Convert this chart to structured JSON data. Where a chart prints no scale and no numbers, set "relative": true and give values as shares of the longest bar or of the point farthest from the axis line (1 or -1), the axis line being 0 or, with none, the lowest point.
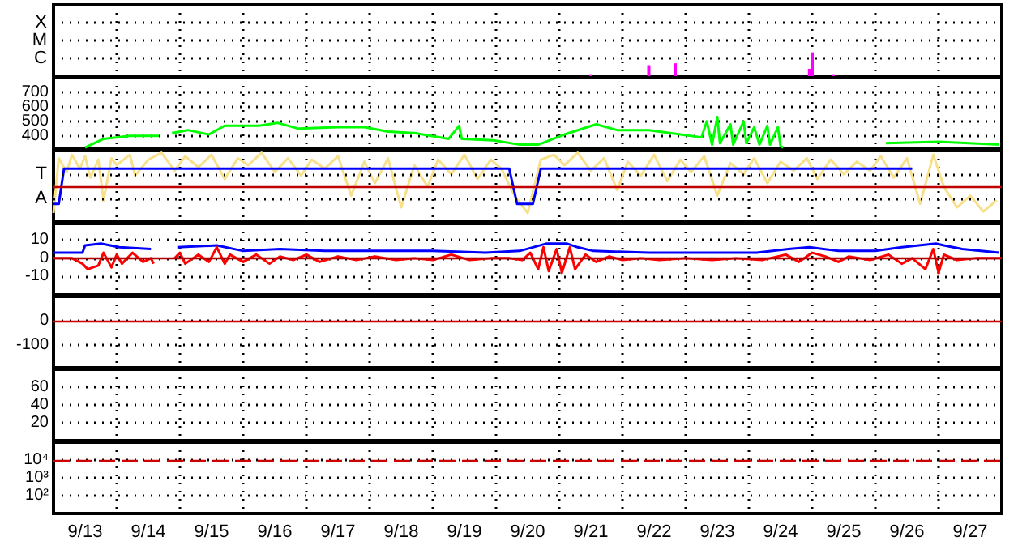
{
  "chart_data": [
    {
      "type": "bar",
      "relative": true,
      "tick_labels": false,
      "grid": true,
      "xlim": [
        "--09-13T00:00",
        "--09-28T00:00"
      ],
      "xticks": [
        {
          "value": "--09-13T12:00",
          "label": "9/13"
        },
        {
          "value": "--09-14T12:00",
          "label": "9/14"
        },
        {
          "value": "--09-15T12:00",
          "label": "9/15"
        },
        {
          "value": "--09-16T12:00",
          "label": "9/16"
        },
        {
          "value": "--09-17T12:00",
          "label": "9/17"
        },
        {
          "value": "--09-18T12:00",
          "label": "9/18"
        },
        {
          "value": "--09-19T12:00",
          "label": "9/19"
        },
        {
          "value": "--09-20T12:00",
          "label": "9/20"
        },
        {
          "value": "--09-21T12:00",
          "label": "9/21"
        },
        {
          "value": "--09-22T12:00",
          "label": "9/22"
        },
        {
          "value": "--09-23T12:00",
          "label": "9/23"
        },
        {
          "value": "--09-24T12:00",
          "label": "9/24"
        },
        {
          "value": "--09-25T12:00",
          "label": "9/25"
        },
        {
          "value": "--09-26T12:00",
          "label": "9/26"
        },
        {
          "value": "--09-27T12:00",
          "label": "9/27"
        },
        {
          "value": "--09-14T00:00",
          "label": null
        },
        {
          "value": "--09-15T00:00",
          "label": null
        },
        {
          "value": "--09-16T00:00",
          "label": null
        },
        {
          "value": "--09-17T00:00",
          "label": null
        },
        {
          "value": "--09-18T00:00",
          "label": null
        },
        {
          "value": "--09-19T00:00",
          "label": null
        },
        {
          "value": "--09-20T00:00",
          "label": null
        },
        {
          "value": "--09-21T00:00",
          "label": null
        },
        {
          "value": "--09-22T00:00",
          "label": null
        },
        {
          "value": "--09-23T00:00",
          "label": null
        },
        {
          "value": "--09-24T00:00",
          "label": null
        },
        {
          "value": "--09-25T00:00",
          "label": null
        },
        {
          "value": "--09-26T00:00",
          "label": null
        },
        {
          "value": "--09-27T00:00",
          "label": null
        }
      ],
      "annotations": [
        "C",
        "M",
        "X"
      ],
      "series": [
        {
          "color": "#ff00ff",
          "x": [
            "--09-21T12:00",
            "--09-22T10:00",
            "--09-22T20:00",
            "--09-24T23:00",
            "--09-25T00:00",
            "--09-25T08:00"
          ],
          "values": [
            0.08,
            0.46,
            0.54,
            0.31,
            1,
            0.08
          ]
        }
      ]
    },
    {
      "type": "line",
      "tick_labels": "y",
      "grid": true,
      "xlim": [
        "--09-13T00:00",
        "--09-28T00:00"
      ],
      "ylim": [
        310,
        800
      ],
      "yticks": [
        400,
        500,
        600,
        700
      ],
      "xticks": [
        {
          "value": "--09-13T12:00",
          "label": "9/13"
        },
        {
          "value": "--09-14T12:00",
          "label": "9/14"
        },
        {
          "value": "--09-15T12:00",
          "label": "9/15"
        },
        {
          "value": "--09-16T12:00",
          "label": "9/16"
        },
        {
          "value": "--09-17T12:00",
          "label": "9/17"
        },
        {
          "value": "--09-18T12:00",
          "label": "9/18"
        },
        {
          "value": "--09-19T12:00",
          "label": "9/19"
        },
        {
          "value": "--09-20T12:00",
          "label": "9/20"
        },
        {
          "value": "--09-21T12:00",
          "label": "9/21"
        },
        {
          "value": "--09-22T12:00",
          "label": "9/22"
        },
        {
          "value": "--09-23T12:00",
          "label": "9/23"
        },
        {
          "value": "--09-24T12:00",
          "label": "9/24"
        },
        {
          "value": "--09-25T12:00",
          "label": "9/25"
        },
        {
          "value": "--09-26T12:00",
          "label": "9/26"
        },
        {
          "value": "--09-27T12:00",
          "label": "9/27"
        },
        {
          "value": "--09-14T00:00",
          "label": null
        },
        {
          "value": "--09-15T00:00",
          "label": null
        },
        {
          "value": "--09-16T00:00",
          "label": null
        },
        {
          "value": "--09-17T00:00",
          "label": null
        },
        {
          "value": "--09-18T00:00",
          "label": null
        },
        {
          "value": "--09-19T00:00",
          "label": null
        },
        {
          "value": "--09-20T00:00",
          "label": null
        },
        {
          "value": "--09-21T00:00",
          "label": null
        },
        {
          "value": "--09-22T00:00",
          "label": null
        },
        {
          "value": "--09-23T00:00",
          "label": null
        },
        {
          "value": "--09-24T00:00",
          "label": null
        },
        {
          "value": "--09-25T00:00",
          "label": null
        },
        {
          "value": "--09-26T00:00",
          "label": null
        },
        {
          "value": "--09-27T00:00",
          "label": null
        }
      ],
      "series": [
        {
          "color": "#00ff00",
          "x": [
            "--09-13T12:00",
            "--09-13T19:00",
            "--09-14T05:00",
            "--09-14T16:00",
            "--09-14T18:00",
            "--09-14T21:00",
            "--09-15T03:00",
            "--09-15T11:00",
            "--09-15T17:00",
            "--09-16T06:00",
            "--09-16T13:00",
            "--09-16T21:00",
            "--09-17T12:00",
            "--09-17T22:00",
            "--09-18T07:00",
            "--09-18T17:00",
            "--09-19T06:00",
            "--09-19T10:00",
            "--09-19T11:00",
            "--09-19T23:00",
            "--09-20T09:00",
            "--09-20T16:00",
            "--09-21T02:00",
            "--09-21T14:00",
            "--09-21T22:00",
            "--09-22T10:00",
            "--09-22T22:00",
            "--09-23T06:00",
            "--09-23T08:00",
            "--09-23T10:00",
            "--09-23T12:00",
            "--09-23T13:00",
            "--09-23T17:00",
            "--09-23T18:00",
            "--09-23T22:00",
            "--09-23T23:00",
            "--09-24T02:00",
            "--09-24T04:00",
            "--09-24T07:00",
            "--09-24T08:00",
            "--09-24T11:00",
            "--09-24T12:00",
            "--09-24T13:00",
            "--09-24T14:00",
            "--09-26T04:00",
            "--09-27T00:00",
            "--09-27T23:00"
          ],
          "values": [
            320,
            380,
            400,
            400,
            null,
            420,
            440,
            410,
            470,
            470,
            490,
            450,
            460,
            460,
            430,
            420,
            380,
            470,
            380,
            370,
            340,
            340,
            410,
            480,
            440,
            440,
            410,
            390,
            500,
            340,
            530,
            350,
            480,
            340,
            500,
            350,
            460,
            340,
            470,
            340,
            460,
            330,
            320,
            null,
            350,
            360,
            340
          ]
        }
      ]
    },
    {
      "type": "line",
      "relative": true,
      "tick_labels": false,
      "grid": true,
      "xlim": [
        "--09-13T00:00",
        "--09-28T00:00"
      ],
      "xticks": [
        {
          "value": "--09-13T12:00",
          "label": "9/13"
        },
        {
          "value": "--09-14T12:00",
          "label": "9/14"
        },
        {
          "value": "--09-15T12:00",
          "label": "9/15"
        },
        {
          "value": "--09-16T12:00",
          "label": "9/16"
        },
        {
          "value": "--09-17T12:00",
          "label": "9/17"
        },
        {
          "value": "--09-18T12:00",
          "label": "9/18"
        },
        {
          "value": "--09-19T12:00",
          "label": "9/19"
        },
        {
          "value": "--09-20T12:00",
          "label": "9/20"
        },
        {
          "value": "--09-21T12:00",
          "label": "9/21"
        },
        {
          "value": "--09-22T12:00",
          "label": "9/22"
        },
        {
          "value": "--09-23T12:00",
          "label": "9/23"
        },
        {
          "value": "--09-24T12:00",
          "label": "9/24"
        },
        {
          "value": "--09-25T12:00",
          "label": "9/25"
        },
        {
          "value": "--09-26T12:00",
          "label": "9/26"
        },
        {
          "value": "--09-27T12:00",
          "label": "9/27"
        },
        {
          "value": "--09-14T00:00",
          "label": null
        },
        {
          "value": "--09-15T00:00",
          "label": null
        },
        {
          "value": "--09-16T00:00",
          "label": null
        },
        {
          "value": "--09-17T00:00",
          "label": null
        },
        {
          "value": "--09-18T00:00",
          "label": null
        },
        {
          "value": "--09-19T00:00",
          "label": null
        },
        {
          "value": "--09-20T00:00",
          "label": null
        },
        {
          "value": "--09-21T00:00",
          "label": null
        },
        {
          "value": "--09-22T00:00",
          "label": null
        },
        {
          "value": "--09-23T00:00",
          "label": null
        },
        {
          "value": "--09-24T00:00",
          "label": null
        },
        {
          "value": "--09-25T00:00",
          "label": null
        },
        {
          "value": "--09-26T00:00",
          "label": null
        },
        {
          "value": "--09-27T00:00",
          "label": null
        }
      ],
      "annotations": [
        "A",
        "T"
      ],
      "ref_lines": [
        {
          "axis": "y",
          "value": 0.51,
          "color": "#c00000"
        }
      ],
      "series": [
        {
          "color": "#f8e08a",
          "x": [
            "--09-13T00:00",
            "--09-13T02:00",
            "--09-13T05:00",
            "--09-13T07:00",
            "--09-13T10:00",
            "--09-13T12:00",
            "--09-13T14:00",
            "--09-13T17:00",
            "--09-13T19:00",
            "--09-13T22:00",
            "--09-14T00:00",
            "--09-14T05:00",
            "--09-14T07:00",
            "--09-14T12:00",
            "--09-14T17:00",
            "--09-14T22:00",
            "--09-15T02:00",
            "--09-15T07:00",
            "--09-15T12:00",
            "--09-15T17:00",
            "--09-15T22:00",
            "--09-16T02:00",
            "--09-16T07:00",
            "--09-16T12:00",
            "--09-16T17:00",
            "--09-16T22:00",
            "--09-17T02:00",
            "--09-17T07:00",
            "--09-17T12:00",
            "--09-17T17:00",
            "--09-17T22:00",
            "--09-18T02:00",
            "--09-18T07:00",
            "--09-18T12:00",
            "--09-18T17:00",
            "--09-18T22:00",
            "--09-19T02:00",
            "--09-19T07:00",
            "--09-19T12:00",
            "--09-19T17:00",
            "--09-19T22:00",
            "--09-20T02:00",
            "--09-20T07:00",
            "--09-20T12:00",
            "--09-20T17:00",
            "--09-20T22:00",
            "--09-21T02:00",
            "--09-21T07:00",
            "--09-21T12:00",
            "--09-21T17:00",
            "--09-21T22:00",
            "--09-22T02:00",
            "--09-22T07:00",
            "--09-22T12:00",
            "--09-22T17:00",
            "--09-22T22:00",
            "--09-23T02:00",
            "--09-23T07:00",
            "--09-23T12:00",
            "--09-23T17:00",
            "--09-23T22:00",
            "--09-24T02:00",
            "--09-24T07:00",
            "--09-24T12:00",
            "--09-24T17:00",
            "--09-24T22:00",
            "--09-25T02:00",
            "--09-25T07:00",
            "--09-25T12:00",
            "--09-25T17:00",
            "--09-25T22:00",
            "--09-26T02:00",
            "--09-26T07:00",
            "--09-26T12:00",
            "--09-26T17:00",
            "--09-26T22:00",
            "--09-27T02:00",
            "--09-27T07:00",
            "--09-27T12:00",
            "--09-27T17:00",
            "--09-27T22:00"
          ],
          "values": [
            0.13,
            0.92,
            0.72,
            0.97,
            0.77,
            0.95,
            0.64,
            0.9,
            0.31,
            0.92,
            0.82,
            0.97,
            0.67,
            0.9,
            1,
            0.74,
            0.95,
            0.79,
            0.97,
            0.62,
            0.92,
            0.82,
            1,
            0.72,
            0.92,
            0.67,
            0.9,
            0.77,
            0.95,
            0.38,
            0.87,
            0.56,
            0.92,
            0.21,
            0.82,
            0.51,
            0.9,
            0.69,
            0.97,
            0.62,
            0.9,
            0.77,
            0.38,
            0.13,
            0.9,
            0.97,
            0.82,
            1,
            0.74,
            0.92,
            0.46,
            0.87,
            0.67,
            0.97,
            0.59,
            0.9,
            0.72,
            0.95,
            0.38,
            0.85,
            0.69,
            0.92,
            0.56,
            0.87,
            0.74,
            0.92,
            0.62,
            0.9,
            0.69,
            0.87,
            0.74,
            0.95,
            0.64,
            0.92,
            0.26,
            0.97,
            0.51,
            0.21,
            0.38,
            0.15,
            0.31
          ]
        },
        {
          "color": "#0000ff",
          "x": [
            "--09-13T00:00",
            "--09-13T02:00",
            "--09-13T04:00",
            "--09-20T05:00",
            "--09-20T08:00",
            "--09-20T14:00",
            "--09-20T17:00",
            "--09-26T14:00"
          ],
          "values": [
            0.26,
            0.26,
            0.77,
            0.77,
            0.26,
            0.26,
            0.77,
            0.77
          ]
        }
      ]
    },
    {
      "type": "line",
      "tick_labels": "y",
      "grid": true,
      "xlim": [
        "--09-13T00:00",
        "--09-28T00:00"
      ],
      "ylim": [
        -20,
        19
      ],
      "yticks": [
        -10,
        0,
        10
      ],
      "xticks": [
        {
          "value": "--09-13T12:00",
          "label": "9/13"
        },
        {
          "value": "--09-14T12:00",
          "label": "9/14"
        },
        {
          "value": "--09-15T12:00",
          "label": "9/15"
        },
        {
          "value": "--09-16T12:00",
          "label": "9/16"
        },
        {
          "value": "--09-17T12:00",
          "label": "9/17"
        },
        {
          "value": "--09-18T12:00",
          "label": "9/18"
        },
        {
          "value": "--09-19T12:00",
          "label": "9/19"
        },
        {
          "value": "--09-20T12:00",
          "label": "9/20"
        },
        {
          "value": "--09-21T12:00",
          "label": "9/21"
        },
        {
          "value": "--09-22T12:00",
          "label": "9/22"
        },
        {
          "value": "--09-23T12:00",
          "label": "9/23"
        },
        {
          "value": "--09-24T12:00",
          "label": "9/24"
        },
        {
          "value": "--09-25T12:00",
          "label": "9/25"
        },
        {
          "value": "--09-26T12:00",
          "label": "9/26"
        },
        {
          "value": "--09-27T12:00",
          "label": "9/27"
        },
        {
          "value": "--09-14T00:00",
          "label": null
        },
        {
          "value": "--09-15T00:00",
          "label": null
        },
        {
          "value": "--09-16T00:00",
          "label": null
        },
        {
          "value": "--09-17T00:00",
          "label": null
        },
        {
          "value": "--09-18T00:00",
          "label": null
        },
        {
          "value": "--09-19T00:00",
          "label": null
        },
        {
          "value": "--09-20T00:00",
          "label": null
        },
        {
          "value": "--09-21T00:00",
          "label": null
        },
        {
          "value": "--09-22T00:00",
          "label": null
        },
        {
          "value": "--09-23T00:00",
          "label": null
        },
        {
          "value": "--09-24T00:00",
          "label": null
        },
        {
          "value": "--09-25T00:00",
          "label": null
        },
        {
          "value": "--09-26T00:00",
          "label": null
        },
        {
          "value": "--09-27T00:00",
          "label": null
        }
      ],
      "ref_lines": [
        {
          "axis": "y",
          "value": 0,
          "color": "#b00000"
        }
      ],
      "series": [
        {
          "color": "#0000ff",
          "x": [
            "--09-13T00:00",
            "--09-13T11:00",
            "--09-13T12:00",
            "--09-13T18:00",
            "--09-14T01:00",
            "--09-14T13:00",
            "--09-14T17:00",
            "--09-14T23:00",
            "--09-15T14:00",
            "--09-16T00:00",
            "--09-16T14:00",
            "--09-17T07:00",
            "--09-18T03:00",
            "--09-19T00:00",
            "--09-19T20:00",
            "--09-20T09:00",
            "--09-20T19:00",
            "--09-21T03:00",
            "--09-21T07:00",
            "--09-21T13:00",
            "--09-22T10:00",
            "--09-23T06:00",
            "--09-24T03:00",
            "--09-24T15:00",
            "--09-24T23:00",
            "--09-25T10:00",
            "--09-26T00:00",
            "--09-26T10:00",
            "--09-26T23:00",
            "--09-27T02:00",
            "--09-27T09:00",
            "--09-27T23:00"
          ],
          "values": [
            3,
            3,
            7,
            8,
            6,
            5,
            null,
            6,
            7,
            4,
            5,
            4,
            4,
            4,
            3,
            4,
            8,
            8,
            6,
            4,
            3,
            3,
            3,
            5,
            6,
            4,
            4,
            6,
            8,
            7,
            5,
            3
          ]
        },
        {
          "color": "#ff0000",
          "x": [
            "--09-13T00:00",
            "--09-13T07:00",
            "--09-13T11:00",
            "--09-13T13:00",
            "--09-13T17:00",
            "--09-13T19:00",
            "--09-13T22:00",
            "--09-14T00:00",
            "--09-14T02:00",
            "--09-14T06:00",
            "--09-14T10:00",
            "--09-14T13:00",
            "--09-14T14:00",
            "--09-14T18:00",
            "--09-14T22:00",
            "--09-15T00:00",
            "--09-15T02:00",
            "--09-15T07:00",
            "--09-15T11:00",
            "--09-15T14:00",
            "--09-15T17:00",
            "--09-15T19:00",
            "--09-16T00:00",
            "--09-16T05:00",
            "--09-16T10:00",
            "--09-16T14:00",
            "--09-16T19:00",
            "--09-17T00:00",
            "--09-17T05:00",
            "--09-17T12:00",
            "--09-17T19:00",
            "--09-18T02:00",
            "--09-18T10:00",
            "--09-18T17:00",
            "--09-19T00:00",
            "--09-19T07:00",
            "--09-19T14:00",
            "--09-19T22:00",
            "--09-20T05:00",
            "--09-20T10:00",
            "--09-20T13:00",
            "--09-20T16:00",
            "--09-20T18:00",
            "--09-20T20:00",
            "--09-20T23:00",
            "--09-21T01:00",
            "--09-21T04:00",
            "--09-21T06:00",
            "--09-21T10:00",
            "--09-21T14:00",
            "--09-21T19:00",
            "--09-22T00:00",
            "--09-22T07:00",
            "--09-22T14:00",
            "--09-23T00:00",
            "--09-23T10:00",
            "--09-23T19:00",
            "--09-24T05:00",
            "--09-24T14:00",
            "--09-24T19:00",
            "--09-25T00:00",
            "--09-25T05:00",
            "--09-25T10:00",
            "--09-25T14:00",
            "--09-25T22:00",
            "--09-26T05:00",
            "--09-26T10:00",
            "--09-26T14:00",
            "--09-26T19:00",
            "--09-26T22:00",
            "--09-27T00:00",
            "--09-27T02:00",
            "--09-27T07:00",
            "--09-27T14:00",
            "--09-28T00:00"
          ],
          "values": [
            0,
            0,
            -3,
            -6,
            -4,
            3,
            -5,
            2,
            -3,
            3,
            -2,
            0,
            -3,
            null,
            0,
            3,
            -3,
            2,
            -2,
            6,
            -3,
            2,
            -2,
            2,
            -3,
            1,
            -1,
            2,
            -2,
            1,
            -1,
            1,
            -1,
            0,
            -1,
            2,
            -1,
            0,
            0,
            -1,
            3,
            -6,
            6,
            -7,
            5,
            -8,
            6,
            -6,
            2,
            -2,
            1,
            -1,
            0,
            -1,
            0,
            -1,
            0,
            -1,
            2,
            -2,
            3,
            1,
            -2,
            1,
            -1,
            2,
            -3,
            0,
            -6,
            5,
            -8,
            2,
            -1,
            0,
            0
          ]
        }
      ]
    },
    {
      "type": "line",
      "tick_labels": "y",
      "grid": true,
      "xlim": [
        "--09-13T00:00",
        "--09-28T00:00"
      ],
      "ylim": [
        -195,
        100
      ],
      "yticks": [
        -100,
        0
      ],
      "xticks": [
        {
          "value": "--09-13T12:00",
          "label": "9/13"
        },
        {
          "value": "--09-14T12:00",
          "label": "9/14"
        },
        {
          "value": "--09-15T12:00",
          "label": "9/15"
        },
        {
          "value": "--09-16T12:00",
          "label": "9/16"
        },
        {
          "value": "--09-17T12:00",
          "label": "9/17"
        },
        {
          "value": "--09-18T12:00",
          "label": "9/18"
        },
        {
          "value": "--09-19T12:00",
          "label": "9/19"
        },
        {
          "value": "--09-20T12:00",
          "label": "9/20"
        },
        {
          "value": "--09-21T12:00",
          "label": "9/21"
        },
        {
          "value": "--09-22T12:00",
          "label": "9/22"
        },
        {
          "value": "--09-23T12:00",
          "label": "9/23"
        },
        {
          "value": "--09-24T12:00",
          "label": "9/24"
        },
        {
          "value": "--09-25T12:00",
          "label": "9/25"
        },
        {
          "value": "--09-26T12:00",
          "label": "9/26"
        },
        {
          "value": "--09-27T12:00",
          "label": "9/27"
        },
        {
          "value": "--09-14T00:00",
          "label": null
        },
        {
          "value": "--09-15T00:00",
          "label": null
        },
        {
          "value": "--09-16T00:00",
          "label": null
        },
        {
          "value": "--09-17T00:00",
          "label": null
        },
        {
          "value": "--09-18T00:00",
          "label": null
        },
        {
          "value": "--09-19T00:00",
          "label": null
        },
        {
          "value": "--09-20T00:00",
          "label": null
        },
        {
          "value": "--09-21T00:00",
          "label": null
        },
        {
          "value": "--09-22T00:00",
          "label": null
        },
        {
          "value": "--09-23T00:00",
          "label": null
        },
        {
          "value": "--09-24T00:00",
          "label": null
        },
        {
          "value": "--09-25T00:00",
          "label": null
        },
        {
          "value": "--09-26T00:00",
          "label": null
        },
        {
          "value": "--09-27T00:00",
          "label": null
        }
      ],
      "ref_lines": [
        {
          "axis": "y",
          "value": 0,
          "color": "#cc0000"
        }
      ]
    },
    {
      "type": "line",
      "tick_labels": "y",
      "grid": true,
      "xlim": [
        "--09-13T00:00",
        "--09-28T00:00"
      ],
      "ylim": [
        0,
        80
      ],
      "yticks": [
        20,
        40,
        60
      ],
      "xticks": [
        {
          "value": "--09-13T12:00",
          "label": "9/13"
        },
        {
          "value": "--09-14T12:00",
          "label": "9/14"
        },
        {
          "value": "--09-15T12:00",
          "label": "9/15"
        },
        {
          "value": "--09-16T12:00",
          "label": "9/16"
        },
        {
          "value": "--09-17T12:00",
          "label": "9/17"
        },
        {
          "value": "--09-18T12:00",
          "label": "9/18"
        },
        {
          "value": "--09-19T12:00",
          "label": "9/19"
        },
        {
          "value": "--09-20T12:00",
          "label": "9/20"
        },
        {
          "value": "--09-21T12:00",
          "label": "9/21"
        },
        {
          "value": "--09-22T12:00",
          "label": "9/22"
        },
        {
          "value": "--09-23T12:00",
          "label": "9/23"
        },
        {
          "value": "--09-24T12:00",
          "label": "9/24"
        },
        {
          "value": "--09-25T12:00",
          "label": "9/25"
        },
        {
          "value": "--09-26T12:00",
          "label": "9/26"
        },
        {
          "value": "--09-27T12:00",
          "label": "9/27"
        },
        {
          "value": "--09-14T00:00",
          "label": null
        },
        {
          "value": "--09-15T00:00",
          "label": null
        },
        {
          "value": "--09-16T00:00",
          "label": null
        },
        {
          "value": "--09-17T00:00",
          "label": null
        },
        {
          "value": "--09-18T00:00",
          "label": null
        },
        {
          "value": "--09-19T00:00",
          "label": null
        },
        {
          "value": "--09-20T00:00",
          "label": null
        },
        {
          "value": "--09-21T00:00",
          "label": null
        },
        {
          "value": "--09-22T00:00",
          "label": null
        },
        {
          "value": "--09-23T00:00",
          "label": null
        },
        {
          "value": "--09-24T00:00",
          "label": null
        },
        {
          "value": "--09-25T00:00",
          "label": null
        },
        {
          "value": "--09-26T00:00",
          "label": null
        },
        {
          "value": "--09-27T00:00",
          "label": null
        }
      ]
    },
    {
      "type": "line",
      "log": "y",
      "grid": true,
      "xlim": [
        "--09-13T00:00",
        "--09-28T00:00"
      ],
      "ylim": [
        10,
        100000
      ],
      "yticks": [
        {
          "value": 100,
          "label": "10²"
        },
        {
          "value": 1000,
          "label": "10³"
        },
        {
          "value": 10000,
          "label": "10⁴"
        }
      ],
      "xticks": [
        {
          "value": "--09-13T12:00",
          "label": "9/13"
        },
        {
          "value": "--09-14T12:00",
          "label": "9/14"
        },
        {
          "value": "--09-15T12:00",
          "label": "9/15"
        },
        {
          "value": "--09-16T12:00",
          "label": "9/16"
        },
        {
          "value": "--09-17T12:00",
          "label": "9/17"
        },
        {
          "value": "--09-18T12:00",
          "label": "9/18"
        },
        {
          "value": "--09-19T12:00",
          "label": "9/19"
        },
        {
          "value": "--09-20T12:00",
          "label": "9/20"
        },
        {
          "value": "--09-21T12:00",
          "label": "9/21"
        },
        {
          "value": "--09-22T12:00",
          "label": "9/22"
        },
        {
          "value": "--09-23T12:00",
          "label": "9/23"
        },
        {
          "value": "--09-24T12:00",
          "label": "9/24"
        },
        {
          "value": "--09-25T12:00",
          "label": "9/25"
        },
        {
          "value": "--09-26T12:00",
          "label": "9/26"
        },
        {
          "value": "--09-27T12:00",
          "label": "9/27"
        },
        {
          "value": "--09-14T00:00",
          "label": null
        },
        {
          "value": "--09-15T00:00",
          "label": null
        },
        {
          "value": "--09-16T00:00",
          "label": null
        },
        {
          "value": "--09-17T00:00",
          "label": null
        },
        {
          "value": "--09-18T00:00",
          "label": null
        },
        {
          "value": "--09-19T00:00",
          "label": null
        },
        {
          "value": "--09-20T00:00",
          "label": null
        },
        {
          "value": "--09-21T00:00",
          "label": null
        },
        {
          "value": "--09-22T00:00",
          "label": null
        },
        {
          "value": "--09-23T00:00",
          "label": null
        },
        {
          "value": "--09-24T00:00",
          "label": null
        },
        {
          "value": "--09-25T00:00",
          "label": null
        },
        {
          "value": "--09-26T00:00",
          "label": null
        },
        {
          "value": "--09-27T00:00",
          "label": null
        }
      ],
      "ref_lines": [
        {
          "axis": "y",
          "value": 10000,
          "color": "#cc0000",
          "line_style": "dashed"
        }
      ]
    }
  ]
}
